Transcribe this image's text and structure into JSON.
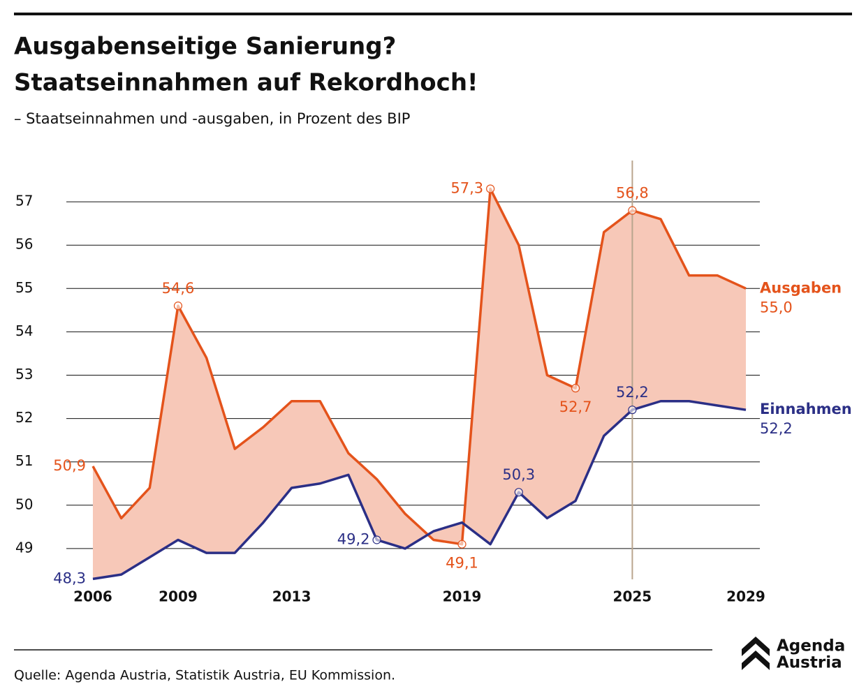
{
  "chart_data": {
    "type": "line",
    "title": [
      "Ausgabenseitige Sanierung?",
      "Staatseinnahmen auf Rekordhoch!"
    ],
    "subtitle": "– Staatseinnahmen und -ausgaben, in Prozent des BIP",
    "x": [
      2006,
      2007,
      2008,
      2009,
      2010,
      2011,
      2012,
      2013,
      2014,
      2015,
      2016,
      2017,
      2018,
      2019,
      2020,
      2021,
      2022,
      2023,
      2024,
      2025,
      2026,
      2027,
      2028,
      2029
    ],
    "series": [
      {
        "name": "Ausgaben",
        "color": "#e4531b",
        "values": [
          50.9,
          49.7,
          50.4,
          54.6,
          53.4,
          51.3,
          51.8,
          52.4,
          52.4,
          51.2,
          50.6,
          49.8,
          49.2,
          49.1,
          57.3,
          56.0,
          53.0,
          52.7,
          56.3,
          56.8,
          56.6,
          55.3,
          55.3,
          55.0
        ],
        "value_labels": [
          "50,9",
          null,
          null,
          "54,6",
          null,
          null,
          null,
          null,
          null,
          null,
          null,
          null,
          null,
          "49,1",
          "57,3",
          null,
          null,
          "52,7",
          null,
          "56,8",
          null,
          null,
          null,
          "55,0"
        ]
      },
      {
        "name": "Einnahmen",
        "color": "#2b2f86",
        "values": [
          48.3,
          48.4,
          48.8,
          49.2,
          48.9,
          48.9,
          49.6,
          50.4,
          50.5,
          50.7,
          49.2,
          49.0,
          49.4,
          49.6,
          49.1,
          50.3,
          49.7,
          50.1,
          51.6,
          52.2,
          52.4,
          52.4,
          52.3,
          52.2
        ],
        "value_labels": [
          "48,3",
          null,
          null,
          null,
          null,
          null,
          null,
          null,
          null,
          null,
          "49,2",
          null,
          null,
          null,
          null,
          "50,3",
          null,
          null,
          null,
          "52,2",
          null,
          null,
          null,
          "52,2"
        ]
      }
    ],
    "fill_color": "#f7c8b8",
    "xlim": [
      2006,
      2029
    ],
    "xticks": [
      2006,
      2009,
      2013,
      2019,
      2025,
      2029
    ],
    "ylim": [
      48,
      58
    ],
    "yticks": [
      49,
      50,
      51,
      52,
      53,
      54,
      55,
      56,
      57
    ],
    "grid": true,
    "vline": 2025,
    "source": "Quelle: Agenda Austria, Statistik Austria, EU Kommission.",
    "logo": [
      "Agenda",
      "Austria"
    ]
  }
}
